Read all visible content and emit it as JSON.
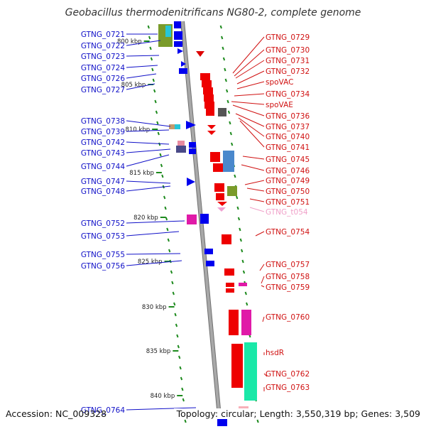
{
  "title": "Geobacillus thermodenitrificans NG80-2, complete genome",
  "footer": {
    "accession": "Accession: NC_009328",
    "summary": "Topology: circular; Length: 3,550,319 bp; Genes: 3,509"
  },
  "colors": {
    "left_label": "#1010c8",
    "right_label": "#d01010",
    "trna_label": "#f0a0c8",
    "dots": "#1d8a1d",
    "backbone": "#a8a8a8"
  },
  "ruler": [
    "800 kbp",
    "805 kbp",
    "810 kbp",
    "815 kbp",
    "820 kbp",
    "825 kbp",
    "830 kbp",
    "835 kbp",
    "840 kbp"
  ],
  "left_genes": [
    "GTNG_0721",
    "GTNG_0722",
    "GTNG_0723",
    "GTNG_0724",
    "GTNG_0726",
    "GTNG_0727",
    "GTNG_0738",
    "GTNG_0739",
    "GTNG_0742",
    "GTNG_0743",
    "GTNG_0744",
    "GTNG_0747",
    "GTNG_0748",
    "GTNG_0752",
    "GTNG_0753",
    "GTNG_0755",
    "GTNG_0756",
    "GTNG_0764"
  ],
  "right_genes": [
    "GTNG_0729",
    "GTNG_0730",
    "GTNG_0731",
    "GTNG_0732",
    "spoVAC",
    "GTNG_0734",
    "spoVAE",
    "GTNG_0736",
    "GTNG_0737",
    "GTNG_0740",
    "GTNG_0741",
    "GTNG_0745",
    "GTNG_0746",
    "GTNG_0749",
    "GTNG_0750",
    "GTNG_0751",
    "GTNG_t054",
    "GTNG_0754",
    "GTNG_0757",
    "GTNG_0758",
    "GTNG_0759",
    "GTNG_0760",
    "hsdR",
    "GTNG_0762",
    "GTNG_0763"
  ]
}
